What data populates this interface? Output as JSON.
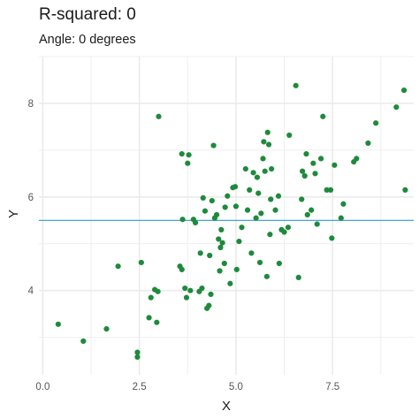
{
  "chart_data": {
    "type": "scatter",
    "title": "R-squared: 0",
    "subtitle": "Angle: 0 degrees",
    "xlabel": "X",
    "ylabel": "Y",
    "xlim": [
      -0.1,
      9.6
    ],
    "ylim": [
      2.2,
      9.0
    ],
    "x_ticks": [
      0,
      2.5,
      5,
      7.5
    ],
    "x_tick_labels": [
      "0.0",
      "2.5",
      "5.0",
      "7.5"
    ],
    "y_ticks": [
      4,
      6,
      8
    ],
    "y_tick_labels": [
      "4",
      "6",
      "8"
    ],
    "grid": true,
    "hline_y": 5.5,
    "colors": {
      "points": "#1e8a3c",
      "hline": "#2b9bd0",
      "grid": "#ebebeb"
    },
    "points": [
      [
        0.4,
        3.28
      ],
      [
        1.05,
        2.92
      ],
      [
        1.65,
        3.18
      ],
      [
        1.95,
        4.52
      ],
      [
        2.45,
        2.58
      ],
      [
        2.45,
        2.68
      ],
      [
        2.55,
        4.6
      ],
      [
        2.75,
        3.42
      ],
      [
        2.8,
        3.85
      ],
      [
        2.9,
        4.02
      ],
      [
        2.98,
        3.98
      ],
      [
        2.95,
        3.32
      ],
      [
        3.0,
        7.72
      ],
      [
        3.55,
        4.52
      ],
      [
        3.6,
        4.45
      ],
      [
        3.6,
        6.92
      ],
      [
        3.62,
        5.52
      ],
      [
        3.68,
        4.05
      ],
      [
        3.72,
        3.85
      ],
      [
        3.75,
        6.72
      ],
      [
        3.78,
        6.9
      ],
      [
        3.82,
        4.0
      ],
      [
        3.9,
        5.52
      ],
      [
        3.95,
        5.45
      ],
      [
        4.05,
        3.98
      ],
      [
        4.08,
        4.8
      ],
      [
        4.12,
        4.05
      ],
      [
        4.15,
        5.98
      ],
      [
        4.2,
        5.7
      ],
      [
        4.25,
        3.62
      ],
      [
        4.3,
        3.68
      ],
      [
        4.32,
        4.75
      ],
      [
        4.35,
        3.92
      ],
      [
        4.38,
        5.92
      ],
      [
        4.42,
        7.1
      ],
      [
        4.45,
        5.55
      ],
      [
        4.5,
        5.62
      ],
      [
        4.55,
        5.1
      ],
      [
        4.58,
        4.42
      ],
      [
        4.6,
        4.92
      ],
      [
        4.62,
        5.3
      ],
      [
        4.65,
        5.02
      ],
      [
        4.7,
        4.58
      ],
      [
        4.72,
        5.78
      ],
      [
        4.78,
        6.02
      ],
      [
        4.85,
        4.15
      ],
      [
        4.92,
        6.2
      ],
      [
        4.98,
        6.22
      ],
      [
        5.0,
        5.8
      ],
      [
        5.02,
        4.45
      ],
      [
        5.08,
        5.05
      ],
      [
        5.15,
        5.35
      ],
      [
        5.25,
        6.6
      ],
      [
        5.3,
        5.72
      ],
      [
        5.35,
        6.15
      ],
      [
        5.4,
        4.8
      ],
      [
        5.45,
        6.52
      ],
      [
        5.52,
        5.55
      ],
      [
        5.55,
        6.42
      ],
      [
        5.58,
        6.08
      ],
      [
        5.62,
        4.6
      ],
      [
        5.65,
        5.65
      ],
      [
        5.7,
        6.82
      ],
      [
        5.72,
        7.18
      ],
      [
        5.75,
        6.55
      ],
      [
        5.8,
        4.3
      ],
      [
        5.82,
        7.38
      ],
      [
        5.85,
        7.12
      ],
      [
        5.88,
        5.2
      ],
      [
        5.9,
        5.95
      ],
      [
        5.92,
        6.6
      ],
      [
        6.02,
        5.72
      ],
      [
        6.1,
        6.02
      ],
      [
        6.12,
        4.58
      ],
      [
        6.18,
        5.3
      ],
      [
        6.25,
        5.25
      ],
      [
        6.35,
        5.35
      ],
      [
        6.38,
        7.32
      ],
      [
        6.55,
        8.38
      ],
      [
        6.62,
        4.28
      ],
      [
        6.7,
        5.95
      ],
      [
        6.72,
        6.55
      ],
      [
        6.78,
        6.45
      ],
      [
        6.82,
        6.92
      ],
      [
        6.85,
        5.62
      ],
      [
        6.95,
        5.72
      ],
      [
        7.0,
        6.72
      ],
      [
        7.05,
        6.5
      ],
      [
        7.1,
        5.42
      ],
      [
        7.2,
        6.82
      ],
      [
        7.25,
        7.72
      ],
      [
        7.35,
        6.15
      ],
      [
        7.45,
        6.15
      ],
      [
        7.48,
        5.12
      ],
      [
        7.55,
        6.68
      ],
      [
        7.72,
        5.55
      ],
      [
        7.78,
        5.85
      ],
      [
        8.05,
        6.75
      ],
      [
        8.12,
        6.82
      ],
      [
        8.42,
        7.15
      ],
      [
        8.62,
        7.58
      ],
      [
        9.15,
        7.92
      ],
      [
        9.35,
        8.28
      ],
      [
        9.38,
        6.15
      ]
    ]
  }
}
